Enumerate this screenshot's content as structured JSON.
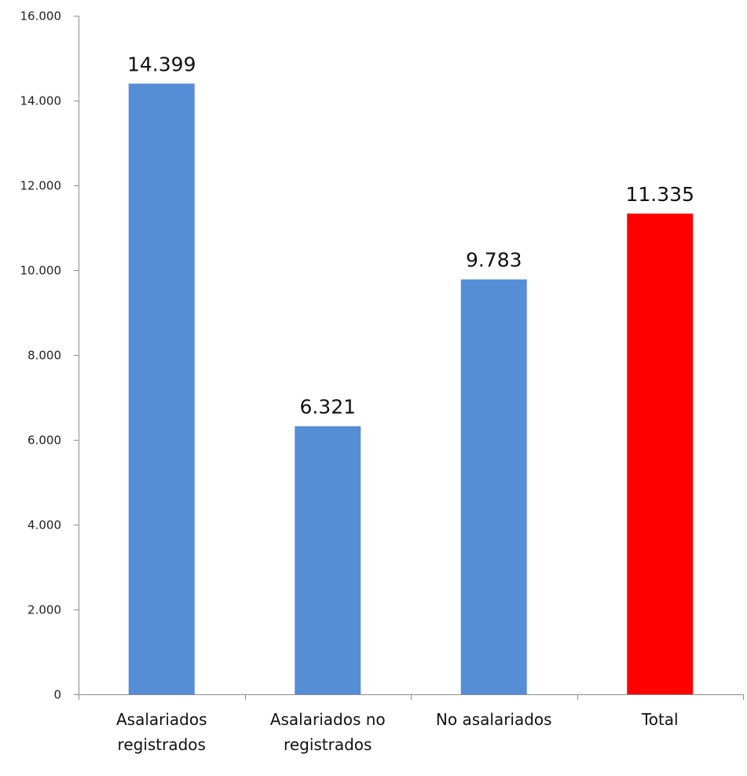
{
  "chart_data": {
    "type": "bar",
    "categories": [
      [
        "Asalariados",
        "registrados"
      ],
      [
        "Asalariados no",
        "registrados"
      ],
      [
        "No asalariados"
      ],
      [
        "Total"
      ]
    ],
    "values": [
      14399,
      6321,
      9783,
      11335
    ],
    "data_labels": [
      "14.399",
      "6.321",
      "9.783",
      "11.335"
    ],
    "bar_colors": [
      "#558ed5",
      "#558ed5",
      "#558ed5",
      "#ff0000"
    ],
    "ylim": [
      0,
      16000
    ],
    "y_ticks": [
      0,
      2000,
      4000,
      6000,
      8000,
      10000,
      12000,
      14000,
      16000
    ],
    "y_tick_labels": [
      "0",
      "2.000",
      "4.000",
      "6.000",
      "8.000",
      "10.000",
      "12.000",
      "14.000",
      "16.000"
    ],
    "title": "",
    "xlabel": "",
    "ylabel": "",
    "grid": false,
    "legend": "none"
  }
}
